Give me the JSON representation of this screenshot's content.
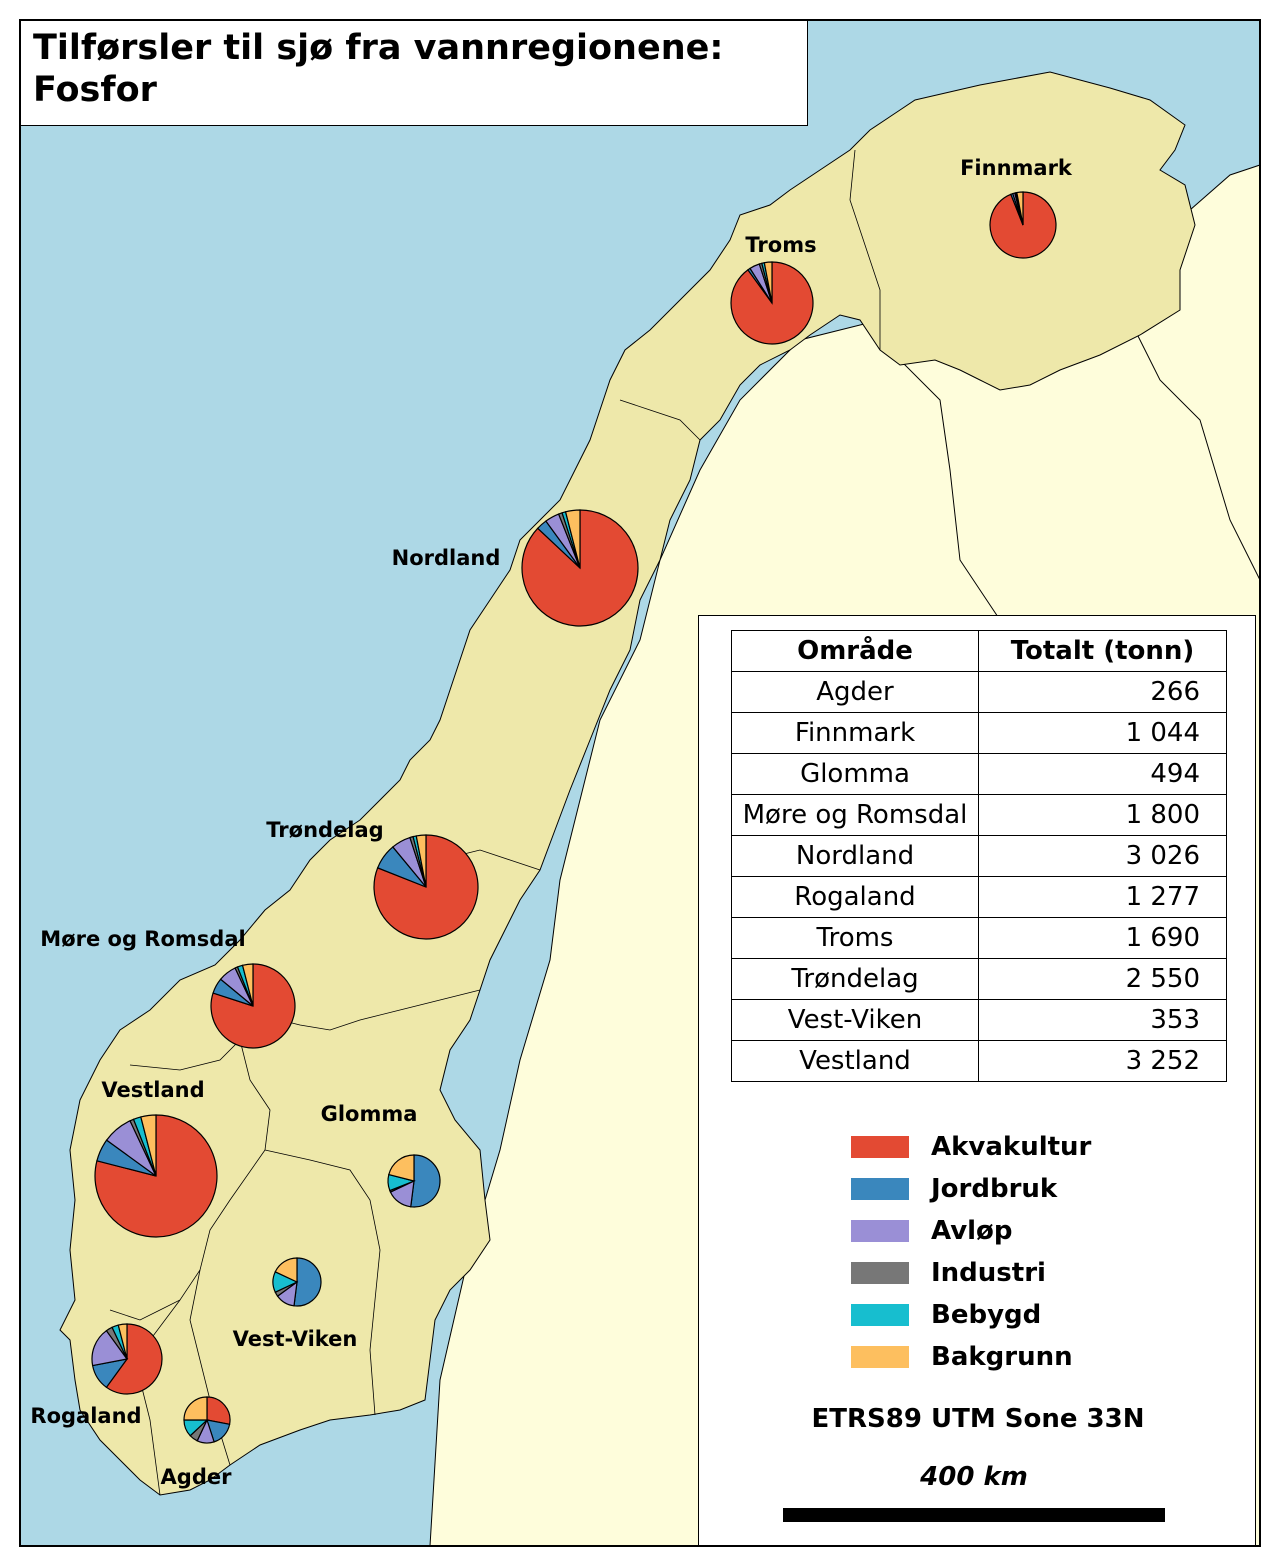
{
  "title": "Tilførsler til sjø fra vannregionene:\nFosfor",
  "colors": {
    "sea": "#add8e6",
    "norway": "#eee8aa",
    "foreign": "#fefddb",
    "Akvakultur": "#e34a33",
    "Jordbruk": "#3a87bd",
    "Avløp": "#9a8fd6",
    "Industri": "#777777",
    "Bebygd": "#17becf",
    "Bakgrunn": "#fdbf5f"
  },
  "regions": [
    {
      "name": "Finnmark",
      "label": "Finnmark",
      "slices": [
        94,
        1,
        1,
        0.5,
        0.5,
        3
      ]
    },
    {
      "name": "Troms",
      "label": "Troms",
      "slices": [
        90,
        1,
        4,
        1,
        1,
        3
      ]
    },
    {
      "name": "Nordland",
      "label": "Nordland",
      "slices": [
        87,
        3,
        4,
        1,
        1,
        4
      ]
    },
    {
      "name": "Trøndelag",
      "label": "Trøndelag",
      "slices": [
        81,
        8,
        6,
        1,
        1,
        3
      ]
    },
    {
      "name": "Møre og Romsdal",
      "label": "Møre og Romsdal",
      "slices": [
        80,
        6,
        7,
        1,
        2,
        4
      ]
    },
    {
      "name": "Vestland",
      "label": "Vestland",
      "slices": [
        79,
        6,
        8,
        1,
        2,
        4
      ]
    },
    {
      "name": "Glomma",
      "label": "Glomma",
      "slices": [
        0,
        52,
        16,
        1,
        10,
        21
      ]
    },
    {
      "name": "Vest-Viken",
      "label": "Vest-Viken",
      "slices": [
        0,
        52,
        13,
        3,
        14,
        18
      ]
    },
    {
      "name": "Rogaland",
      "label": "Rogaland",
      "slices": [
        60,
        12,
        18,
        3,
        3,
        4
      ]
    },
    {
      "name": "Agder",
      "label": "Agder",
      "slices": [
        28,
        17,
        12,
        6,
        12,
        25
      ]
    }
  ],
  "legend": {
    "table": {
      "headers": [
        "Område",
        "Totalt (tonn)"
      ],
      "rows": [
        [
          "Agder",
          "266"
        ],
        [
          "Finnmark",
          "1 044"
        ],
        [
          "Glomma",
          "494"
        ],
        [
          "Møre og Romsdal",
          "1 800"
        ],
        [
          "Nordland",
          "3 026"
        ],
        [
          "Rogaland",
          "1 277"
        ],
        [
          "Troms",
          "1 690"
        ],
        [
          "Trøndelag",
          "2 550"
        ],
        [
          "Vest-Viken",
          "353"
        ],
        [
          "Vestland",
          "3 252"
        ]
      ]
    },
    "categories": [
      "Akvakultur",
      "Jordbruk",
      "Avløp",
      "Industri",
      "Bebygd",
      "Bakgrunn"
    ],
    "crs": "ETRS89 UTM Sone 33N",
    "scale_label": "400 km"
  }
}
